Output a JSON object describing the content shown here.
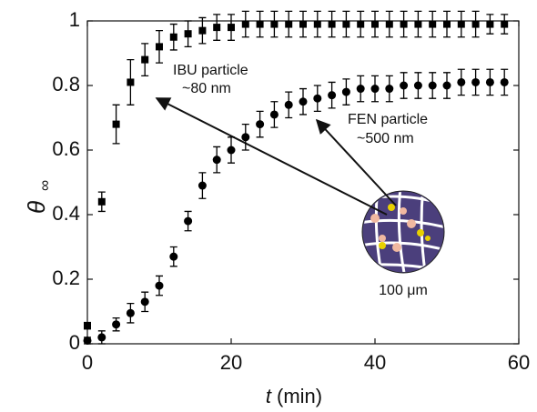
{
  "chart_data": {
    "type": "scatter",
    "x_label_var": "t",
    "x_label_unit": "(min)",
    "y_label": "θ",
    "y_label_sub": "∞",
    "xlim": [
      0,
      60
    ],
    "ylim": [
      0,
      1
    ],
    "xticks": [
      0,
      20,
      40,
      60
    ],
    "yticks": [
      0,
      0.2,
      0.4,
      0.6,
      0.8,
      1
    ],
    "series": [
      {
        "marker": "square",
        "color": "#000000",
        "x": [
          0,
          2,
          4,
          6,
          8,
          10,
          12,
          14,
          16,
          18,
          20,
          22,
          24,
          26,
          28,
          30,
          32,
          34,
          36,
          38,
          40,
          42,
          44,
          46,
          48,
          50,
          52,
          54,
          56,
          58
        ],
        "values": [
          0.056,
          0.44,
          0.68,
          0.81,
          0.88,
          0.92,
          0.95,
          0.96,
          0.97,
          0.98,
          0.98,
          0.99,
          0.99,
          0.99,
          0.99,
          0.99,
          0.99,
          0.99,
          0.99,
          0.99,
          0.99,
          0.99,
          0.99,
          0.99,
          0.99,
          0.99,
          0.99,
          0.99,
          0.99,
          0.99
        ],
        "errors": [
          0.01,
          0.03,
          0.06,
          0.07,
          0.05,
          0.05,
          0.04,
          0.04,
          0.04,
          0.04,
          0.04,
          0.04,
          0.04,
          0.04,
          0.04,
          0.04,
          0.04,
          0.04,
          0.04,
          0.04,
          0.04,
          0.04,
          0.04,
          0.04,
          0.04,
          0.04,
          0.04,
          0.04,
          0.03,
          0.03
        ]
      },
      {
        "marker": "circle",
        "color": "#000000",
        "x": [
          0,
          2,
          4,
          6,
          8,
          10,
          12,
          14,
          16,
          18,
          20,
          22,
          24,
          26,
          28,
          30,
          32,
          34,
          36,
          38,
          40,
          42,
          44,
          46,
          48,
          50,
          52,
          54,
          56,
          58
        ],
        "values": [
          0.01,
          0.02,
          0.06,
          0.095,
          0.13,
          0.18,
          0.27,
          0.38,
          0.49,
          0.57,
          0.6,
          0.64,
          0.68,
          0.71,
          0.74,
          0.75,
          0.76,
          0.77,
          0.78,
          0.79,
          0.79,
          0.79,
          0.8,
          0.8,
          0.8,
          0.8,
          0.81,
          0.81,
          0.81,
          0.81
        ],
        "errors": [
          0.01,
          0.02,
          0.02,
          0.03,
          0.03,
          0.03,
          0.03,
          0.03,
          0.04,
          0.04,
          0.04,
          0.04,
          0.04,
          0.04,
          0.04,
          0.04,
          0.04,
          0.04,
          0.04,
          0.04,
          0.04,
          0.04,
          0.04,
          0.04,
          0.04,
          0.04,
          0.04,
          0.04,
          0.04,
          0.04
        ]
      }
    ],
    "annotations": [
      "IBU particle",
      "~80 nm",
      "FEN particle",
      "~500 nm",
      "100 μm"
    ]
  }
}
